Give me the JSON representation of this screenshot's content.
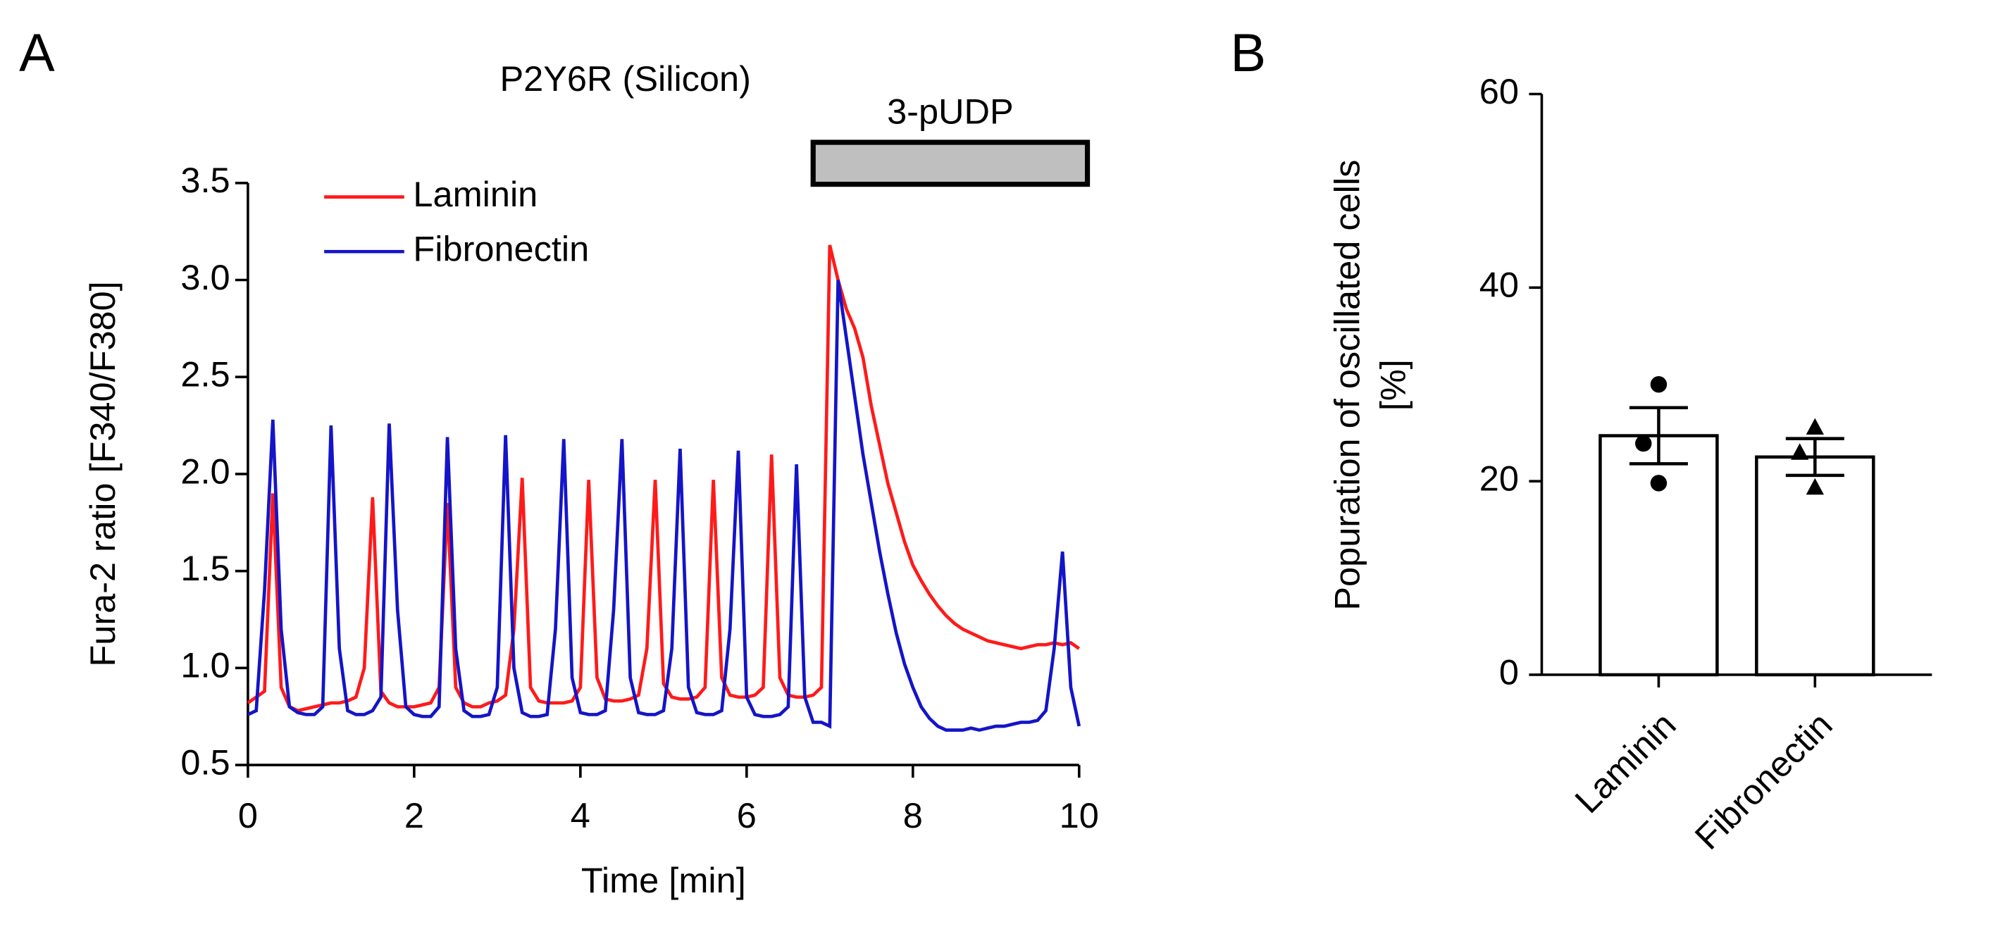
{
  "chart_data": [
    {
      "type": "line",
      "panel": "A",
      "title": "P2Y6R (Silicon)",
      "xlabel": "Time [min]",
      "ylabel": "Fura-2 ratio [F340/F380]",
      "annotation": {
        "text": "3-pUDP",
        "x_range": [
          6.8,
          10.1
        ],
        "color": "#bfbfbf"
      },
      "x": [
        0,
        0.1,
        0.2,
        0.3,
        0.4,
        0.5,
        0.6,
        0.7,
        0.8,
        0.9,
        1,
        1.1,
        1.2,
        1.3,
        1.4,
        1.5,
        1.6,
        1.7,
        1.8,
        1.9,
        2,
        2.1,
        2.2,
        2.3,
        2.4,
        2.5,
        2.6,
        2.7,
        2.8,
        2.9,
        3,
        3.1,
        3.2,
        3.3,
        3.4,
        3.5,
        3.6,
        3.7,
        3.8,
        3.9,
        4,
        4.1,
        4.2,
        4.3,
        4.4,
        4.5,
        4.6,
        4.7,
        4.8,
        4.9,
        5,
        5.1,
        5.2,
        5.3,
        5.4,
        5.5,
        5.6,
        5.7,
        5.8,
        5.9,
        6,
        6.1,
        6.2,
        6.3,
        6.4,
        6.5,
        6.6,
        6.7,
        6.8,
        6.9,
        7,
        7.1,
        7.2,
        7.3,
        7.4,
        7.5,
        7.6,
        7.7,
        7.8,
        7.9,
        8,
        8.1,
        8.2,
        8.3,
        8.4,
        8.5,
        8.6,
        8.7,
        8.8,
        8.9,
        9,
        9.1,
        9.2,
        9.3,
        9.4,
        9.5,
        9.6,
        9.7,
        9.8,
        9.9,
        10
      ],
      "series": [
        {
          "name": "Laminin",
          "color": "#ff1a1a",
          "values": [
            0.82,
            0.85,
            0.88,
            1.9,
            0.9,
            0.8,
            0.78,
            0.79,
            0.8,
            0.81,
            0.82,
            0.82,
            0.83,
            0.85,
            1.0,
            1.88,
            0.88,
            0.82,
            0.8,
            0.8,
            0.8,
            0.81,
            0.82,
            0.9,
            1.85,
            0.9,
            0.82,
            0.8,
            0.8,
            0.82,
            0.83,
            0.86,
            1.2,
            1.98,
            0.9,
            0.83,
            0.82,
            0.82,
            0.82,
            0.83,
            0.9,
            1.97,
            0.95,
            0.84,
            0.83,
            0.83,
            0.84,
            0.86,
            1.1,
            1.97,
            0.92,
            0.85,
            0.84,
            0.84,
            0.85,
            0.9,
            1.97,
            0.95,
            0.86,
            0.85,
            0.85,
            0.86,
            0.9,
            2.1,
            0.95,
            0.86,
            0.85,
            0.85,
            0.86,
            0.9,
            3.18,
            3.0,
            2.85,
            2.75,
            2.6,
            2.35,
            2.15,
            1.95,
            1.8,
            1.65,
            1.53,
            1.45,
            1.38,
            1.32,
            1.27,
            1.23,
            1.2,
            1.18,
            1.16,
            1.14,
            1.13,
            1.12,
            1.11,
            1.1,
            1.11,
            1.12,
            1.12,
            1.13,
            1.12,
            1.13,
            1.1
          ]
        },
        {
          "name": "Fibronectin",
          "color": "#1414c8",
          "values": [
            0.76,
            0.78,
            1.4,
            2.28,
            1.2,
            0.8,
            0.77,
            0.76,
            0.76,
            0.8,
            2.25,
            1.1,
            0.78,
            0.76,
            0.76,
            0.78,
            0.85,
            2.26,
            1.3,
            0.8,
            0.76,
            0.75,
            0.75,
            0.8,
            2.19,
            1.1,
            0.78,
            0.75,
            0.75,
            0.76,
            0.9,
            2.2,
            1.0,
            0.77,
            0.75,
            0.75,
            0.76,
            1.2,
            2.18,
            0.95,
            0.77,
            0.76,
            0.76,
            0.78,
            1.3,
            2.18,
            0.95,
            0.77,
            0.76,
            0.76,
            0.78,
            1.1,
            2.13,
            0.9,
            0.77,
            0.76,
            0.76,
            0.78,
            1.2,
            2.12,
            0.85,
            0.76,
            0.75,
            0.75,
            0.76,
            0.8,
            2.05,
            0.85,
            0.72,
            0.72,
            0.7,
            3.0,
            2.7,
            2.4,
            2.1,
            1.85,
            1.6,
            1.38,
            1.18,
            1.02,
            0.9,
            0.8,
            0.74,
            0.7,
            0.68,
            0.68,
            0.68,
            0.69,
            0.68,
            0.69,
            0.7,
            0.7,
            0.71,
            0.72,
            0.72,
            0.73,
            0.78,
            1.1,
            1.6,
            0.9,
            0.7
          ]
        }
      ],
      "xlim": [
        0,
        10
      ],
      "xticks": [
        0,
        2,
        4,
        6,
        8,
        10
      ],
      "ylim": [
        0.5,
        3.5
      ],
      "yticks": [
        0.5,
        {
          "value": 1,
          "label": "1.0"
        },
        1.5,
        {
          "value": 2,
          "label": "2.0"
        },
        2.5,
        {
          "value": 3,
          "label": "3.0"
        },
        3.5
      ],
      "legend": "upper left"
    },
    {
      "type": "bar",
      "panel": "B",
      "ylabel": [
        "Popuration of oscillated cells",
        "[%]"
      ],
      "categories": [
        "Laminin",
        "Fibronectin"
      ],
      "values": [
        24.7,
        22.5
      ],
      "errors": [
        2.9,
        1.9
      ],
      "points": [
        [
          30,
          23.9,
          19.8
        ],
        [
          25.6,
          23,
          19.4
        ]
      ],
      "markers": [
        "circle",
        "triangle"
      ],
      "color": "#ffffff",
      "ylim": [
        0,
        60
      ],
      "yticks": [
        0,
        20,
        40,
        60
      ]
    }
  ]
}
